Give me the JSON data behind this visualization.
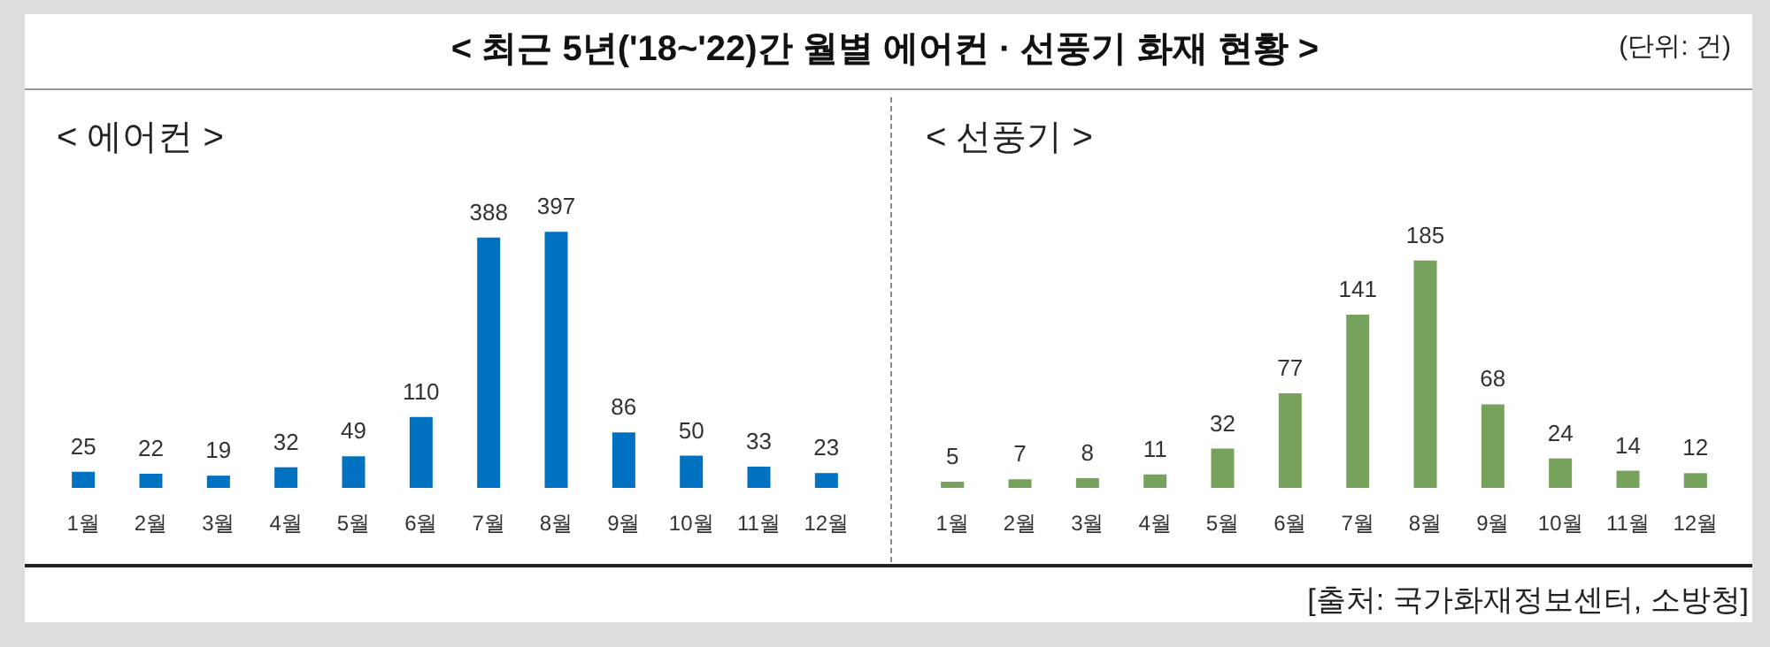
{
  "chart_data": [
    {
      "type": "bar",
      "title": "< 에어컨 >",
      "annotations": [
        "< 최근 5년('18~'22)간 월별 에어컨 · 선풍기 화재 현황 >",
        "(단위: 건)"
      ],
      "categories": [
        "1월",
        "2월",
        "3월",
        "4월",
        "5월",
        "6월",
        "7월",
        "8월",
        "9월",
        "10월",
        "11월",
        "12월"
      ],
      "values": [
        25,
        22,
        19,
        32,
        49,
        110,
        388,
        397,
        86,
        50,
        33,
        23
      ],
      "color": "#0070c0",
      "data_labels": true
    },
    {
      "type": "bar",
      "title": "< 선풍기 >",
      "annotations": [
        "[출처: 국가화재정보센터, 소방청]"
      ],
      "categories": [
        "1월",
        "2월",
        "3월",
        "4월",
        "5월",
        "6월",
        "7월",
        "8월",
        "9월",
        "10월",
        "11월",
        "12월"
      ],
      "values": [
        5,
        7,
        8,
        11,
        32,
        77,
        141,
        185,
        68,
        24,
        14,
        12
      ],
      "color": "#77a25b",
      "data_labels": true
    }
  ]
}
